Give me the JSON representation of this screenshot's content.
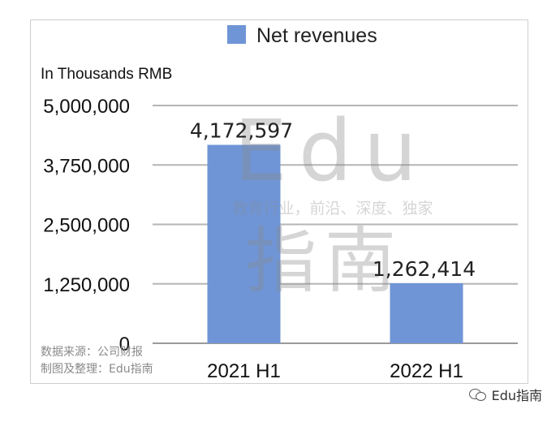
{
  "chart_data": {
    "type": "bar",
    "categories": [
      "2021 H1",
      "2022 H1"
    ],
    "series": [
      {
        "name": "Net revenues",
        "values": [
          4172597,
          1262414
        ]
      }
    ],
    "data_labels": [
      "4,172,597",
      "1,262,414"
    ],
    "ylabel": "In Thousands RMB",
    "ylim": [
      0,
      5000000
    ],
    "yticks": [
      0,
      1250000,
      2500000,
      3750000,
      5000000
    ],
    "ytick_labels": [
      "0",
      "1,250,000",
      "2,500,000",
      "3,750,000",
      "5,000,000"
    ],
    "legend": "top-center",
    "grid": true,
    "bar_color": "#6f95d6"
  },
  "watermark": {
    "line1": "Edu",
    "line2": "教育行业，前沿、深度、独家",
    "line3": "指南"
  },
  "source_note": {
    "line1": "数据来源：公司财报",
    "line2": "制图及整理：Edu指南"
  },
  "footer": {
    "label": "Edu指南"
  }
}
